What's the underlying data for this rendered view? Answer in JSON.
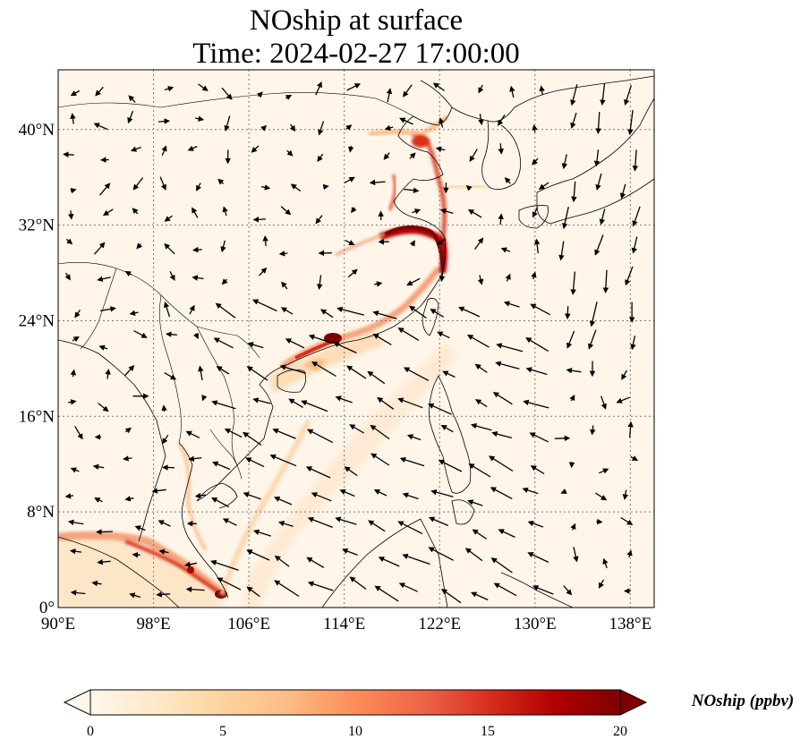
{
  "map": {
    "title_line1": "NOship at surface",
    "title_line2": "Time: 2024-02-27 17:00:00",
    "extent": {
      "lon_min": 90,
      "lon_max": 140,
      "lat_min": 0,
      "lat_max": 45
    },
    "lon_ticks": [
      {
        "value": 90,
        "label": "90°E"
      },
      {
        "value": 98,
        "label": "98°E"
      },
      {
        "value": 106,
        "label": "106°E"
      },
      {
        "value": 114,
        "label": "114°E"
      },
      {
        "value": 122,
        "label": "122°E"
      },
      {
        "value": 130,
        "label": "130°E"
      },
      {
        "value": 138,
        "label": "138°E"
      }
    ],
    "lat_ticks": [
      {
        "value": 0,
        "label": "0°"
      },
      {
        "value": 8,
        "label": "8°N"
      },
      {
        "value": 16,
        "label": "16°N"
      },
      {
        "value": 24,
        "label": "24°N"
      },
      {
        "value": 32,
        "label": "32°N"
      },
      {
        "value": 40,
        "label": "40°N"
      }
    ],
    "gridlines": true,
    "colors": {
      "cmap": [
        "#fff7ec",
        "#fee8c8",
        "#fdd49e",
        "#fdbb84",
        "#fc8d59",
        "#ef6548",
        "#d7301f",
        "#b30000",
        "#7f0000"
      ]
    }
  },
  "colorbar": {
    "label": "NOship (ppbv)",
    "min": 0,
    "max": 20,
    "ticks": [
      {
        "value": 0,
        "label": "0"
      },
      {
        "value": 5,
        "label": "5"
      },
      {
        "value": 10,
        "label": "10"
      },
      {
        "value": 15,
        "label": "15"
      },
      {
        "value": 20,
        "label": "20"
      }
    ],
    "extend": "both"
  }
}
